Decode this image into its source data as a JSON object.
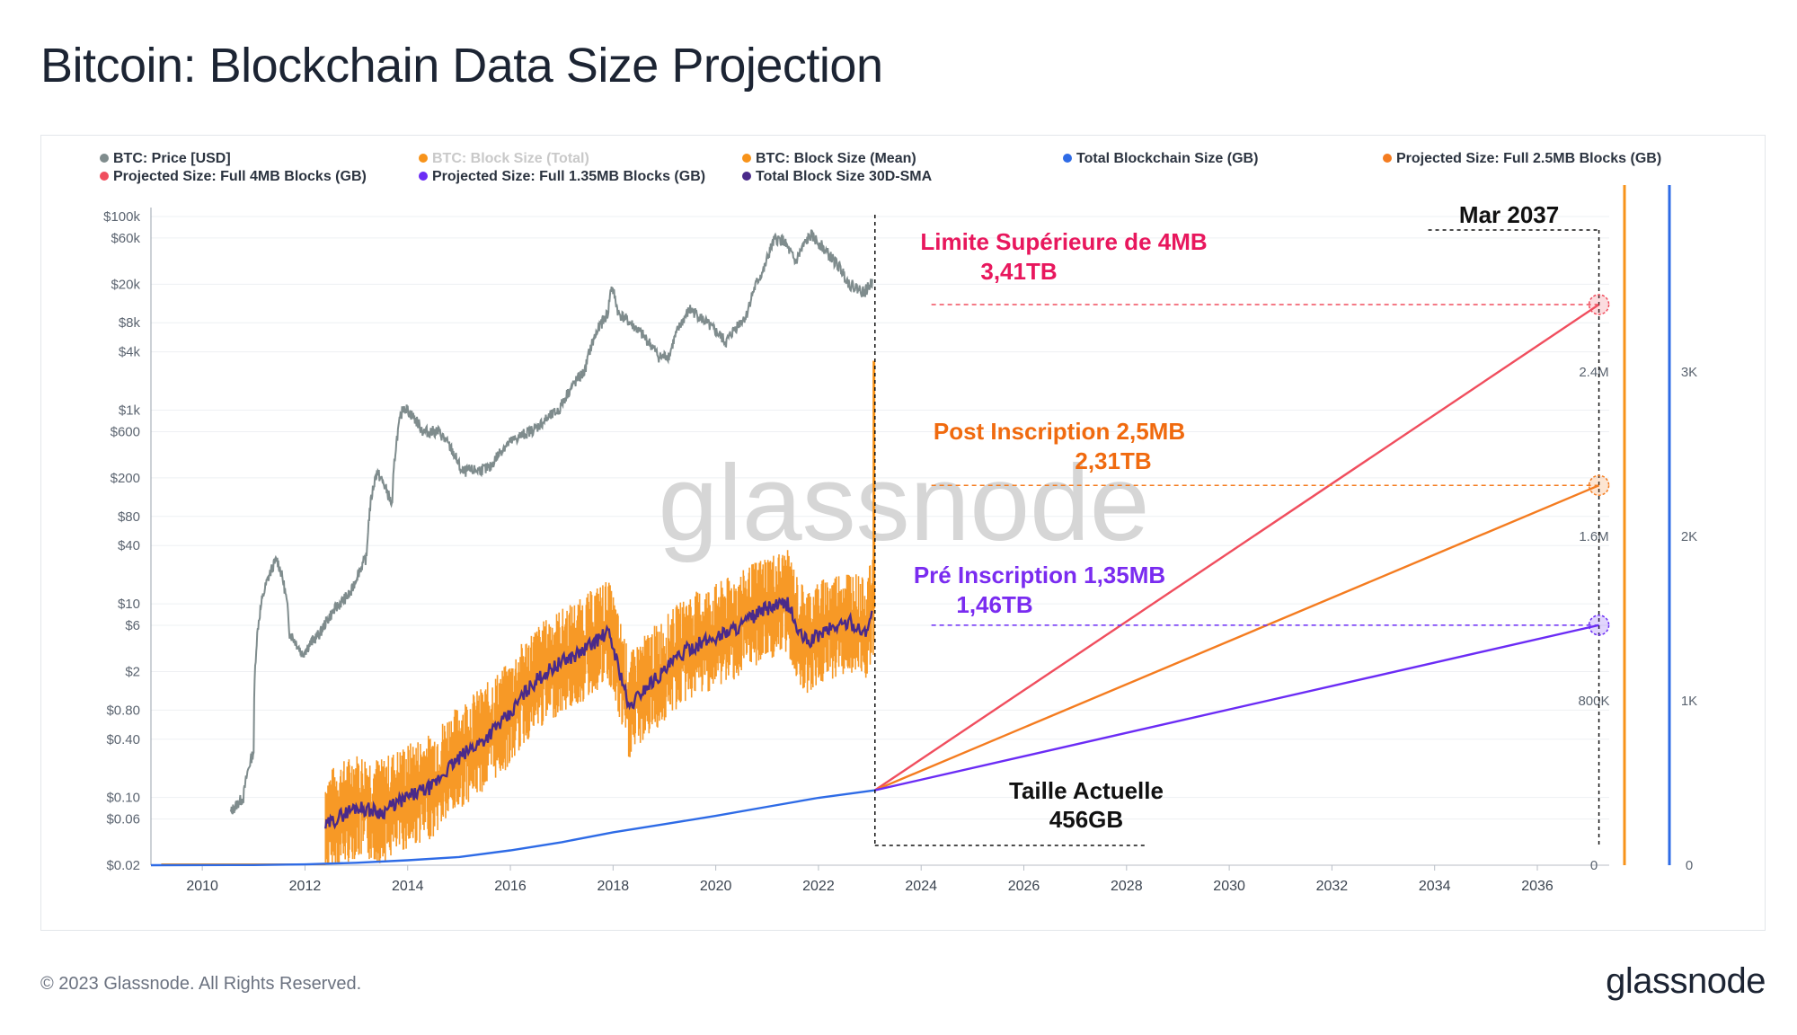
{
  "page": {
    "title": "Bitcoin: Blockchain Data Size Projection",
    "copyright": "© 2023 Glassnode. All Rights Reserved.",
    "logo": "glassnode",
    "watermark": "glassnode"
  },
  "chart_data": {
    "type": "line",
    "title": "Bitcoin: Blockchain Data Size Projection",
    "legend": [
      {
        "name": "BTC: Price [USD]",
        "color": "#7f8c8d",
        "muted": false
      },
      {
        "name": "BTC: Block Size (Total)",
        "color": "#f7931a",
        "muted": true
      },
      {
        "name": "BTC: Block Size (Mean)",
        "color": "#f7931a",
        "muted": false
      },
      {
        "name": "Total Blockchain Size (GB)",
        "color": "#2e6be6",
        "muted": false
      },
      {
        "name": "Projected Size: Full 2.5MB Blocks (GB)",
        "color": "#f47c20",
        "muted": false
      },
      {
        "name": "Projected Size: Full 4MB Blocks (GB)",
        "color": "#f04e5e",
        "muted": false
      },
      {
        "name": "Projected Size: Full 1.35MB Blocks (GB)",
        "color": "#6b2cf5",
        "muted": false
      },
      {
        "name": "Total Block Size 30D-SMA",
        "color": "#4a2a8a",
        "muted": false
      }
    ],
    "x_ticks": [
      "2010",
      "2012",
      "2014",
      "2016",
      "2018",
      "2020",
      "2022",
      "2024",
      "2026",
      "2028",
      "2030",
      "2032",
      "2034",
      "2036"
    ],
    "xlim": [
      2009,
      2037.4
    ],
    "price_ticks": [
      "$100k",
      "$60k",
      "$20k",
      "$8k",
      "$4k",
      "$1k",
      "$600",
      "$200",
      "$80",
      "$40",
      "$10",
      "$6",
      "$2",
      "$0.80",
      "$0.40",
      "$0.10",
      "$0.06",
      "$0.02"
    ],
    "price_tick_values": [
      100000,
      60000,
      20000,
      8000,
      4000,
      1000,
      600,
      200,
      80,
      40,
      10,
      6,
      2,
      0.8,
      0.4,
      0.1,
      0.06,
      0.02
    ],
    "price_ylim": [
      0.02,
      100000
    ],
    "block_axis_ticks": [
      "2.4M",
      "1.6M",
      "800K",
      "0"
    ],
    "block_axis_values": [
      2400000,
      1600000,
      800000,
      0
    ],
    "gb_axis_ticks": [
      "3K",
      "2K",
      "1K",
      "0"
    ],
    "gb_axis_values": [
      3000,
      2000,
      1000,
      0
    ],
    "gb_ylim": [
      0,
      4000
    ],
    "series": [
      {
        "name": "BTC: Price [USD]",
        "x": [
          2010.55,
          2010.8,
          2011.0,
          2011.45,
          2011.7,
          2011.95,
          2012.3,
          2012.9,
          2013.2,
          2013.4,
          2013.7,
          2013.92,
          2014.3,
          2014.6,
          2015.05,
          2015.6,
          2015.9,
          2016.5,
          2016.95,
          2017.45,
          2017.9,
          2017.97,
          2018.1,
          2018.5,
          2018.9,
          2019.1,
          2019.5,
          2019.9,
          2020.2,
          2020.6,
          2020.95,
          2021.15,
          2021.3,
          2021.55,
          2021.85,
          2022.2,
          2022.6,
          2022.9,
          2023.05
        ],
        "values": [
          0.07,
          0.1,
          0.3,
          29,
          5,
          3,
          5,
          13,
          30,
          230,
          100,
          1100,
          600,
          600,
          230,
          250,
          430,
          650,
          1000,
          2500,
          10000,
          19000,
          10000,
          6500,
          3500,
          3700,
          11000,
          7200,
          5000,
          9500,
          29000,
          58000,
          57000,
          33000,
          64000,
          40000,
          20000,
          16500,
          21000
        ]
      },
      {
        "name": "Total Blockchain Size (GB)",
        "x": [
          2009,
          2011,
          2012,
          2013,
          2014,
          2015,
          2016,
          2017,
          2018,
          2019,
          2020,
          2021,
          2022,
          2023.1
        ],
        "values": [
          0,
          1,
          5,
          15,
          30,
          50,
          90,
          140,
          200,
          250,
          300,
          355,
          410,
          456
        ]
      },
      {
        "name": "Projected Size: Full 4MB Blocks (GB)",
        "x": [
          2023.1,
          2037.2
        ],
        "values": [
          456,
          3410
        ]
      },
      {
        "name": "Projected Size: Full 2.5MB Blocks (GB)",
        "x": [
          2023.1,
          2037.2
        ],
        "values": [
          456,
          2310
        ]
      },
      {
        "name": "Projected Size: Full 1.35MB Blocks (GB)",
        "x": [
          2023.1,
          2037.2
        ],
        "values": [
          456,
          1460
        ]
      },
      {
        "name": "Total Block Size 30D-SMA",
        "x": [
          2012.4,
          2013,
          2013.5,
          2014,
          2014.5,
          2015,
          2015.5,
          2016,
          2016.5,
          2017,
          2017.4,
          2017.9,
          2018.1,
          2018.3,
          2018.6,
          2019,
          2019.5,
          2020,
          2020.5,
          2021,
          2021.4,
          2021.6,
          2021.8,
          2022.2,
          2022.6,
          2022.9,
          2023.05
        ],
        "values": [
          0.05,
          0.08,
          0.07,
          0.1,
          0.13,
          0.25,
          0.4,
          0.7,
          1.6,
          2.5,
          3.2,
          5,
          2.2,
          0.8,
          1.3,
          2,
          3.5,
          4.5,
          6,
          9,
          10,
          5,
          4,
          5.5,
          6.5,
          5,
          8
        ]
      }
    ],
    "annotations": {
      "mar_2037": "Mar 2037",
      "limit_4mb": "Limite Supérieure de 4MB",
      "limit_4mb_value": "3,41TB",
      "post_inscription": "Post Inscription 2,5MB",
      "post_inscription_value": "2,31TB",
      "pre_inscription": "Pré Inscription 1,35MB",
      "pre_inscription_value": "1,46TB",
      "current_label": "Taille Actuelle",
      "current_value": "456GB"
    },
    "colors": {
      "price": "#7f8c8d",
      "block": "#f7931a",
      "blue": "#2e6be6",
      "proj4": "#f04e5e",
      "proj25": "#f47c20",
      "proj135": "#6b2cf5",
      "sma": "#4a2a8a",
      "ann4": "#e8175d",
      "ann25": "#f06a0f",
      "ann135": "#7a2cf0"
    }
  }
}
